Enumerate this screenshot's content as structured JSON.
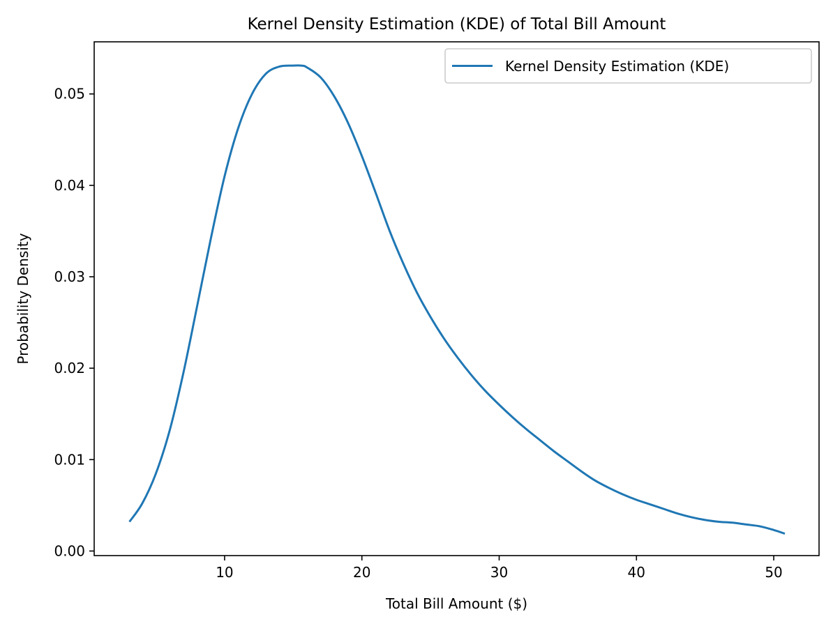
{
  "chart_data": {
    "type": "line",
    "title": "Kernel Density Estimation (KDE) of Total Bill Amount",
    "xlabel": "Total Bill Amount ($)",
    "ylabel": "Probability Density",
    "xlim": [
      0.5,
      53.3
    ],
    "ylim": [
      -0.0005,
      0.0557
    ],
    "xticks": [
      10,
      20,
      30,
      40,
      50
    ],
    "xtick_labels": [
      "10",
      "20",
      "30",
      "40",
      "50"
    ],
    "yticks": [
      0.0,
      0.01,
      0.02,
      0.03,
      0.04,
      0.05
    ],
    "ytick_labels": [
      "0.00",
      "0.01",
      "0.02",
      "0.03",
      "0.04",
      "0.05"
    ],
    "grid": false,
    "legend": {
      "position": "top-right",
      "entries": [
        "Kernel Density Estimation (KDE)"
      ]
    },
    "series": [
      {
        "name": "Kernel Density Estimation (KDE)",
        "color": "#1f77b4",
        "x": [
          3.07,
          4.0,
          5.0,
          6.0,
          7.0,
          8.0,
          9.0,
          10.0,
          11.0,
          12.0,
          13.0,
          14.0,
          15.0,
          15.6,
          16.0,
          17.0,
          18.0,
          19.0,
          20.0,
          21.0,
          22.0,
          23.0,
          24.0,
          25.0,
          26.0,
          27.0,
          28.0,
          29.0,
          30.0,
          31.0,
          32.0,
          33.0,
          34.0,
          35.0,
          36.0,
          37.0,
          38.0,
          39.0,
          40.0,
          41.0,
          42.0,
          43.0,
          44.0,
          45.0,
          46.0,
          47.0,
          48.0,
          49.0,
          50.0,
          50.81
        ],
        "y": [
          0.0032,
          0.0052,
          0.0085,
          0.0132,
          0.0195,
          0.0268,
          0.0342,
          0.041,
          0.0463,
          0.05,
          0.0522,
          0.053,
          0.0531,
          0.0531,
          0.0529,
          0.0518,
          0.0497,
          0.0468,
          0.0432,
          0.0392,
          0.0351,
          0.0315,
          0.0283,
          0.0256,
          0.0232,
          0.0211,
          0.0192,
          0.0175,
          0.016,
          0.0146,
          0.0133,
          0.0121,
          0.0109,
          0.0098,
          0.0087,
          0.0077,
          0.0069,
          0.0062,
          0.0056,
          0.0051,
          0.0046,
          0.0041,
          0.0037,
          0.0034,
          0.0032,
          0.0031,
          0.0029,
          0.0027,
          0.0023,
          0.0019
        ]
      }
    ]
  }
}
